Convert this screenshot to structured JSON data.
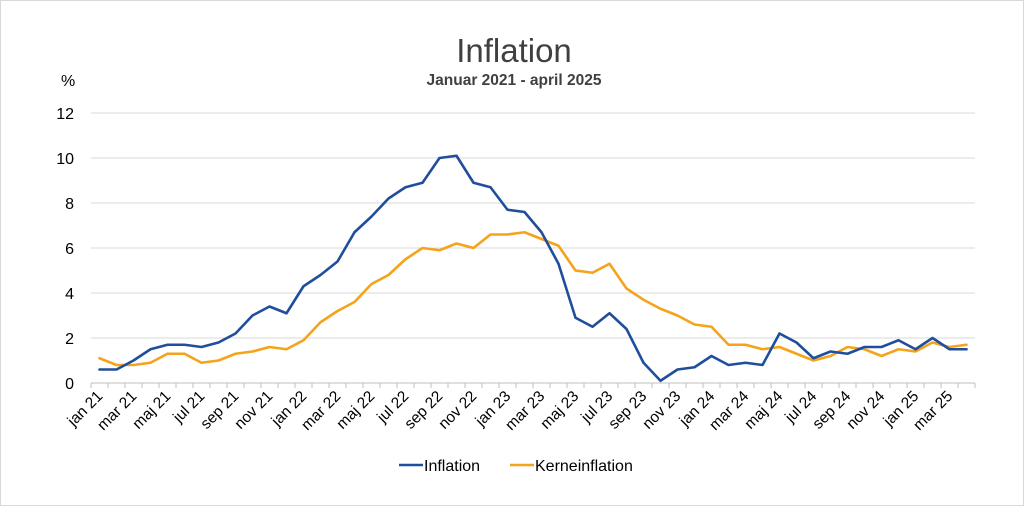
{
  "chart_data": {
    "type": "line",
    "title": "Inflation",
    "subtitle": "Januar 2021 - april 2025",
    "ylabel": "%",
    "ylim": [
      0,
      12
    ],
    "yticks": [
      0,
      2,
      4,
      6,
      8,
      10,
      12
    ],
    "grid": true,
    "legend_position": "bottom",
    "tick_labels": [
      "jan 21",
      "mar 21",
      "maj 21",
      "jul 21",
      "sep 21",
      "nov 21",
      "jan 22",
      "mar 22",
      "maj 22",
      "jul 22",
      "sep 22",
      "nov 22",
      "jan 23",
      "mar 23",
      "maj 23",
      "jul 23",
      "sep 23",
      "nov 23",
      "jan 24",
      "mar 24",
      "maj 24",
      "jul 24",
      "sep 24",
      "nov 24",
      "jan 25",
      "mar 25"
    ],
    "categories": [
      "jan 21",
      "feb 21",
      "mar 21",
      "apr 21",
      "maj 21",
      "jun 21",
      "jul 21",
      "aug 21",
      "sep 21",
      "okt 21",
      "nov 21",
      "dec 21",
      "jan 22",
      "feb 22",
      "mar 22",
      "apr 22",
      "maj 22",
      "jun 22",
      "jul 22",
      "aug 22",
      "sep 22",
      "okt 22",
      "nov 22",
      "dec 22",
      "jan 23",
      "feb 23",
      "mar 23",
      "apr 23",
      "maj 23",
      "jun 23",
      "jul 23",
      "aug 23",
      "sep 23",
      "okt 23",
      "nov 23",
      "dec 23",
      "jan 24",
      "feb 24",
      "mar 24",
      "apr 24",
      "maj 24",
      "jun 24",
      "jul 24",
      "aug 24",
      "sep 24",
      "okt 24",
      "nov 24",
      "dec 24",
      "jan 25",
      "feb 25",
      "mar 25",
      "apr 25"
    ],
    "series": [
      {
        "name": "Inflation",
        "color": "#1f4e9c",
        "values": [
          0.6,
          0.6,
          1.0,
          1.5,
          1.7,
          1.7,
          1.6,
          1.8,
          2.2,
          3.0,
          3.4,
          3.1,
          4.3,
          4.8,
          5.4,
          6.7,
          7.4,
          8.2,
          8.7,
          8.9,
          10.0,
          10.1,
          8.9,
          8.7,
          7.7,
          7.6,
          6.7,
          5.3,
          2.9,
          2.5,
          3.1,
          2.4,
          0.9,
          0.1,
          0.6,
          0.7,
          1.2,
          0.8,
          0.9,
          0.8,
          2.2,
          1.8,
          1.1,
          1.4,
          1.3,
          1.6,
          1.6,
          1.9,
          1.5,
          2.0,
          1.5,
          1.5
        ]
      },
      {
        "name": "Kerneinflation",
        "color": "#f5a31a",
        "values": [
          1.1,
          0.8,
          0.8,
          0.9,
          1.3,
          1.3,
          0.9,
          1.0,
          1.3,
          1.4,
          1.6,
          1.5,
          1.9,
          2.7,
          3.2,
          3.6,
          4.4,
          4.8,
          5.5,
          6.0,
          5.9,
          6.2,
          6.0,
          6.6,
          6.6,
          6.7,
          6.4,
          6.1,
          5.0,
          4.9,
          5.3,
          4.2,
          3.7,
          3.3,
          3.0,
          2.6,
          2.5,
          1.7,
          1.7,
          1.5,
          1.6,
          1.3,
          1.0,
          1.2,
          1.6,
          1.5,
          1.2,
          1.5,
          1.4,
          1.8,
          1.6,
          1.7
        ]
      }
    ]
  }
}
